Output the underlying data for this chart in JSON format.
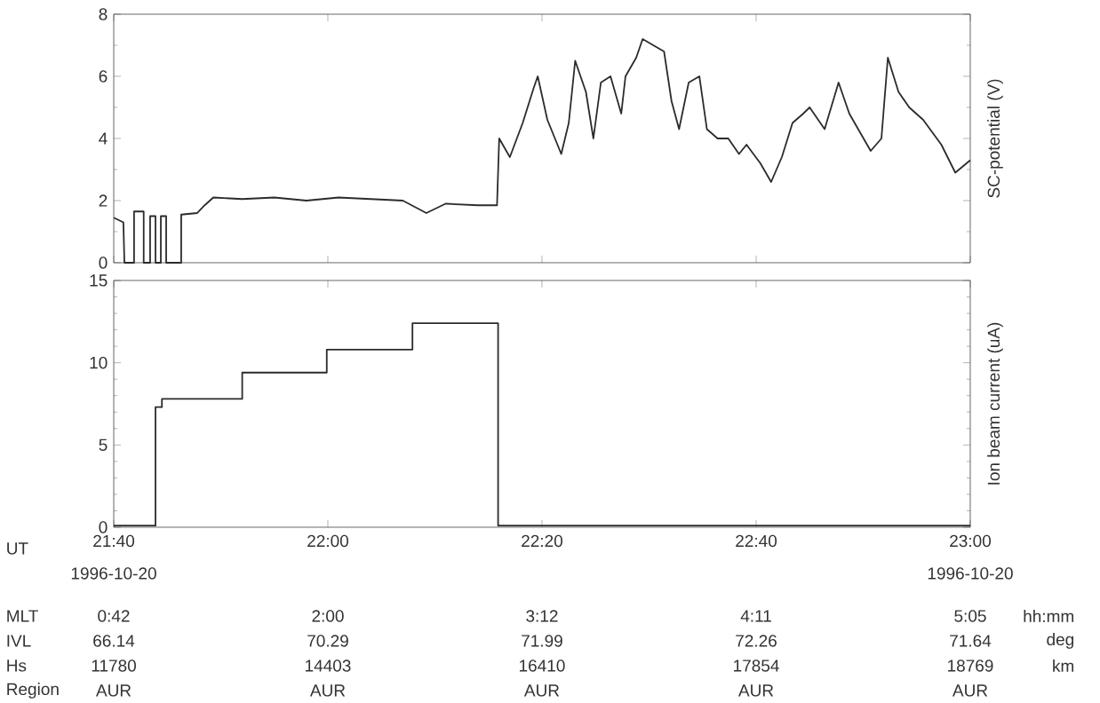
{
  "chart_data": [
    {
      "type": "line",
      "ylabel": "SC-potential (V)",
      "color": "#2b2b2b",
      "tick_labels": "y",
      "xlim": [
        21.6667,
        23.0
      ],
      "xticks": [
        {
          "value": 21.6667,
          "label": null
        },
        {
          "value": 22.0,
          "label": null
        },
        {
          "value": 22.3333,
          "label": null
        },
        {
          "value": 22.6667,
          "label": null
        },
        {
          "value": 23.0,
          "label": null
        }
      ],
      "ylim": [
        0,
        8
      ],
      "yticks": [
        0,
        2,
        4,
        6,
        8
      ],
      "x": [
        21.6667,
        21.6817,
        21.6833,
        21.6983,
        21.6983,
        21.7133,
        21.7133,
        21.7233,
        21.7233,
        21.7317,
        21.7317,
        21.74,
        21.74,
        21.7483,
        21.7483,
        21.7717,
        21.7717,
        21.7967,
        21.8083,
        21.8217,
        21.8667,
        21.9167,
        21.9667,
        22.0167,
        22.0667,
        22.1167,
        22.1533,
        22.1833,
        22.2333,
        22.2633,
        22.2667,
        22.2833,
        22.3033,
        22.32,
        22.3267,
        22.3417,
        22.3633,
        22.375,
        22.385,
        22.4017,
        22.4133,
        22.425,
        22.44,
        22.4567,
        22.4633,
        22.48,
        22.49,
        22.5233,
        22.535,
        22.5467,
        22.5617,
        22.5783,
        22.59,
        22.6067,
        22.6233,
        22.64,
        22.6517,
        22.6733,
        22.69,
        22.7067,
        22.7233,
        22.74,
        22.75,
        22.7733,
        22.795,
        22.8117,
        22.8283,
        22.845,
        22.8617,
        22.8717,
        22.8883,
        22.905,
        22.9267,
        22.955,
        22.9767,
        23.0
      ],
      "values": [
        1.45,
        1.3,
        0,
        0,
        1.65,
        1.65,
        0,
        0,
        1.5,
        1.5,
        0,
        0,
        1.5,
        1.5,
        0,
        0,
        1.55,
        1.6,
        1.85,
        2.1,
        2.05,
        2.1,
        2.0,
        2.1,
        2.05,
        2.0,
        1.6,
        1.9,
        1.85,
        1.85,
        4.0,
        3.4,
        4.5,
        5.6,
        6.0,
        4.6,
        3.5,
        4.5,
        6.5,
        5.5,
        4.0,
        5.8,
        6.0,
        4.8,
        6.0,
        6.6,
        7.2,
        6.8,
        5.2,
        4.3,
        5.8,
        6.0,
        4.3,
        4.0,
        4.0,
        3.5,
        3.8,
        3.2,
        2.6,
        3.4,
        4.5,
        4.8,
        5.0,
        4.3,
        5.8,
        4.8,
        4.2,
        3.6,
        4.0,
        6.6,
        5.5,
        5.0,
        4.6,
        3.8,
        2.9,
        3.3
      ]
    },
    {
      "type": "step",
      "ylabel": "Ion beam current (uA)",
      "color": "#2b2b2b",
      "xlim": [
        21.6667,
        23.0
      ],
      "xticks": [
        {
          "value": 21.6667,
          "label": "21:40"
        },
        {
          "value": 22.0,
          "label": "22:00"
        },
        {
          "value": 22.3333,
          "label": "22:20"
        },
        {
          "value": 22.6667,
          "label": "22:40"
        },
        {
          "value": 23.0,
          "label": "23:00"
        }
      ],
      "ylim": [
        0,
        15
      ],
      "yticks": [
        0,
        5,
        10,
        15
      ],
      "x": [
        21.6667,
        21.7317,
        21.7417,
        21.8667,
        21.9983,
        22.1317,
        22.265,
        23.0
      ],
      "values": [
        0.1,
        7.3,
        7.8,
        9.4,
        10.8,
        12.4,
        0.1,
        0.1
      ],
      "annotations": [
        "UT",
        "1996-10-20",
        "1996-10-20",
        "MLT",
        "0:42",
        "2:00",
        "3:12",
        "4:11",
        "5:05",
        "hh:mm",
        "IVL",
        "66.14",
        "70.29",
        "71.99",
        "72.26",
        "71.64",
        "deg",
        "Hs",
        "11780",
        "14403",
        "16410",
        "17854",
        "18769",
        "km",
        "Region",
        "AUR",
        "AUR",
        "AUR",
        "AUR",
        "AUR"
      ]
    }
  ]
}
